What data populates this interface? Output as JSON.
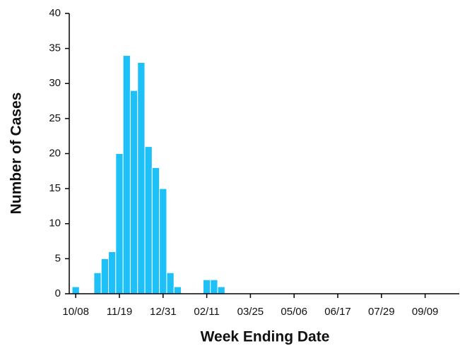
{
  "chart_data": {
    "type": "bar",
    "x_label": "Week Ending Date",
    "y_label": "Number of Cases",
    "categories": [
      "10/08",
      null,
      null,
      null,
      null,
      null,
      "11/19",
      null,
      null,
      null,
      null,
      null,
      "12/31",
      null,
      null,
      null,
      null,
      null,
      "02/11",
      null,
      null,
      null,
      null,
      null,
      "03/25",
      null,
      null,
      null,
      null,
      null,
      "05/06",
      null,
      null,
      null,
      null,
      null,
      "06/17",
      null,
      null,
      null,
      null,
      null,
      "07/29",
      null,
      null,
      null,
      null,
      null,
      "09/09",
      null,
      null,
      null,
      null
    ],
    "values": [
      1,
      0,
      0,
      3,
      5,
      6,
      20,
      34,
      29,
      33,
      21,
      18,
      15,
      3,
      1,
      0,
      0,
      0,
      2,
      2,
      1,
      0,
      0,
      0,
      0,
      0,
      0,
      0,
      0,
      0,
      0,
      0,
      0,
      0,
      0,
      0,
      0,
      0,
      0,
      0,
      0,
      0,
      0,
      0,
      0,
      0,
      0,
      0,
      0,
      0,
      0,
      0,
      0
    ],
    "color": "#1ec1f7",
    "ylim": [
      0,
      40
    ],
    "yticks": [
      0,
      5,
      10,
      15,
      20,
      25,
      30,
      35,
      40
    ]
  }
}
